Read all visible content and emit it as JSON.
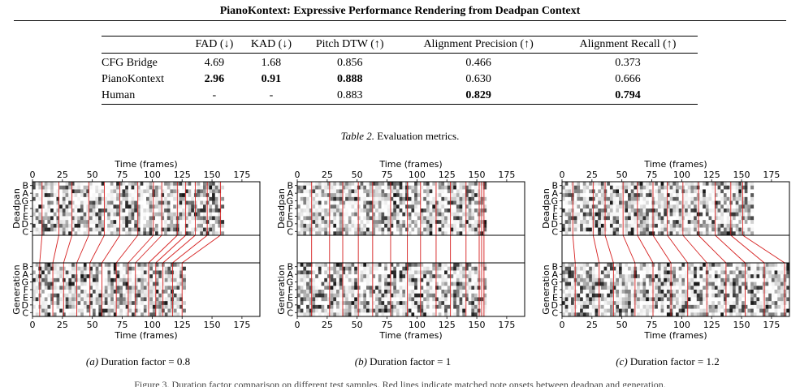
{
  "header": {
    "title": "PianoKontext: Expressive Performance Rendering from Deadpan Context"
  },
  "table": {
    "columns": [
      "",
      "FAD (↓)",
      "KAD (↓)",
      "Pitch DTW (↑)",
      "Alignment Precision (↑)",
      "Alignment Recall (↑)"
    ],
    "rows": [
      {
        "name": "CFG Bridge",
        "values": [
          "4.69",
          "1.68",
          "0.856",
          "0.466",
          "0.373"
        ],
        "bold": [
          false,
          false,
          false,
          false,
          false
        ]
      },
      {
        "name": "PianoKontext",
        "values": [
          "2.96",
          "0.91",
          "0.888",
          "0.630",
          "0.666"
        ],
        "bold": [
          true,
          true,
          true,
          false,
          false
        ]
      },
      {
        "name": "Human",
        "values": [
          "-",
          "-",
          "0.883",
          "0.829",
          "0.794"
        ],
        "bold": [
          false,
          false,
          false,
          true,
          true
        ]
      }
    ],
    "caption_label": "Table 2.",
    "caption_text": " Evaluation metrics."
  },
  "figure": {
    "x_label": "Time (frames)",
    "x_ticks": [
      0,
      25,
      50,
      75,
      100,
      125,
      150,
      175
    ],
    "x_max": 190,
    "y_ticks": [
      "B",
      "A",
      "G",
      "F",
      "E",
      "D",
      "C"
    ],
    "top_ylabel": "Deadpan",
    "bottom_ylabel": "Generation",
    "line_color": "#d62020",
    "panels": [
      {
        "id": "a",
        "label": "(a)",
        "caption": " Duration factor = 0.8",
        "deadpan_length": 160,
        "generation_length": 128,
        "deadpan_ticks": [
          8,
          22,
          33,
          47,
          60,
          73,
          88,
          101,
          108,
          121,
          128,
          136,
          146,
          157
        ],
        "generation_ticks": [
          6,
          17,
          26,
          37,
          48,
          58,
          70,
          80,
          86,
          97,
          103,
          109,
          117,
          125
        ]
      },
      {
        "id": "b",
        "label": "(b)",
        "caption": " Duration factor = 1",
        "deadpan_length": 158,
        "generation_length": 158,
        "deadpan_ticks": [
          12,
          27,
          38,
          51,
          63,
          78,
          92,
          103,
          116,
          128,
          141,
          152,
          154,
          156
        ],
        "generation_ticks": [
          12,
          27,
          38,
          51,
          63,
          78,
          92,
          103,
          116,
          128,
          141,
          152,
          154,
          156
        ]
      },
      {
        "id": "c",
        "label": "(c)",
        "caption": " Duration factor = 1.2",
        "deadpan_length": 160,
        "generation_length": 190,
        "deadpan_ticks": [
          9,
          26,
          36,
          51,
          63,
          76,
          88,
          101,
          114,
          128,
          141,
          151
        ],
        "generation_ticks": [
          11,
          31,
          43,
          61,
          76,
          91,
          105,
          121,
          137,
          153,
          169,
          186
        ]
      }
    ]
  },
  "footer_text": "Figure 3. Duration factor comparison on different test samples. Red lines indicate matched note onsets between deadpan and generation."
}
